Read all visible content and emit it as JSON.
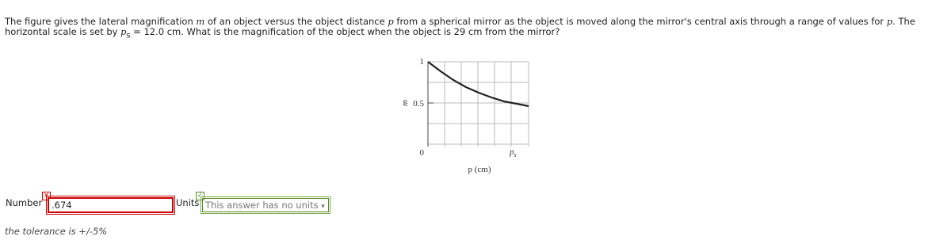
{
  "question": {
    "parts": [
      "The figure gives the lateral magnification ",
      "m",
      " of an object versus the object distance ",
      "p",
      " from a spherical mirror as the object is moved along the mirror's central axis through a range of values for ",
      "p",
      ". The horizontal scale is set by ",
      "p",
      "s",
      " = 12.0 cm. What is the magnification of the object when the object is 29 cm from the mirror?"
    ]
  },
  "figure": {
    "y_label": "m",
    "y_ticks": [
      "1",
      "0.5",
      "0"
    ],
    "x_label": "p (cm)",
    "x_mark": "p",
    "x_mark_sub": "s"
  },
  "answer": {
    "number_label": "Number",
    "value": ".674",
    "units_label": "Units",
    "units_value": "This answer has no units"
  },
  "tolerance": "the tolerance is +/-5%"
}
